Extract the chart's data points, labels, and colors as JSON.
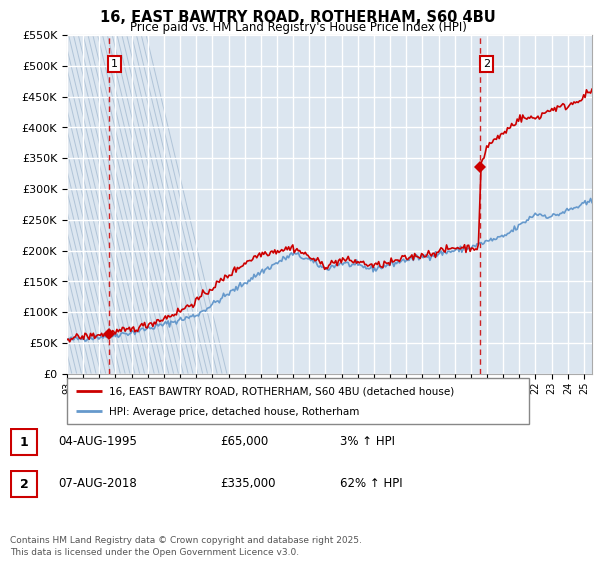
{
  "title": "16, EAST BAWTRY ROAD, ROTHERHAM, S60 4BU",
  "subtitle": "Price paid vs. HM Land Registry's House Price Index (HPI)",
  "ylabel_ticks": [
    "£0",
    "£50K",
    "£100K",
    "£150K",
    "£200K",
    "£250K",
    "£300K",
    "£350K",
    "£400K",
    "£450K",
    "£500K",
    "£550K"
  ],
  "ytick_values": [
    0,
    50000,
    100000,
    150000,
    200000,
    250000,
    300000,
    350000,
    400000,
    450000,
    500000,
    550000
  ],
  "xmin": 1993.0,
  "xmax": 2025.5,
  "ymin": 0,
  "ymax": 550000,
  "plot_bg_color": "#dce6f0",
  "grid_color": "#ffffff",
  "red_line_color": "#cc0000",
  "blue_line_color": "#6699cc",
  "vline1_x": 1995.58,
  "vline2_x": 2018.58,
  "legend_label1": "16, EAST BAWTRY ROAD, ROTHERHAM, S60 4BU (detached house)",
  "legend_label2": "HPI: Average price, detached house, Rotherham",
  "table_data": [
    {
      "num": "1",
      "date": "04-AUG-1995",
      "price": "£65,000",
      "change": "3% ↑ HPI"
    },
    {
      "num": "2",
      "date": "07-AUG-2018",
      "price": "£335,000",
      "change": "62% ↑ HPI"
    }
  ],
  "footer": "Contains HM Land Registry data © Crown copyright and database right 2025.\nThis data is licensed under the Open Government Licence v3.0."
}
